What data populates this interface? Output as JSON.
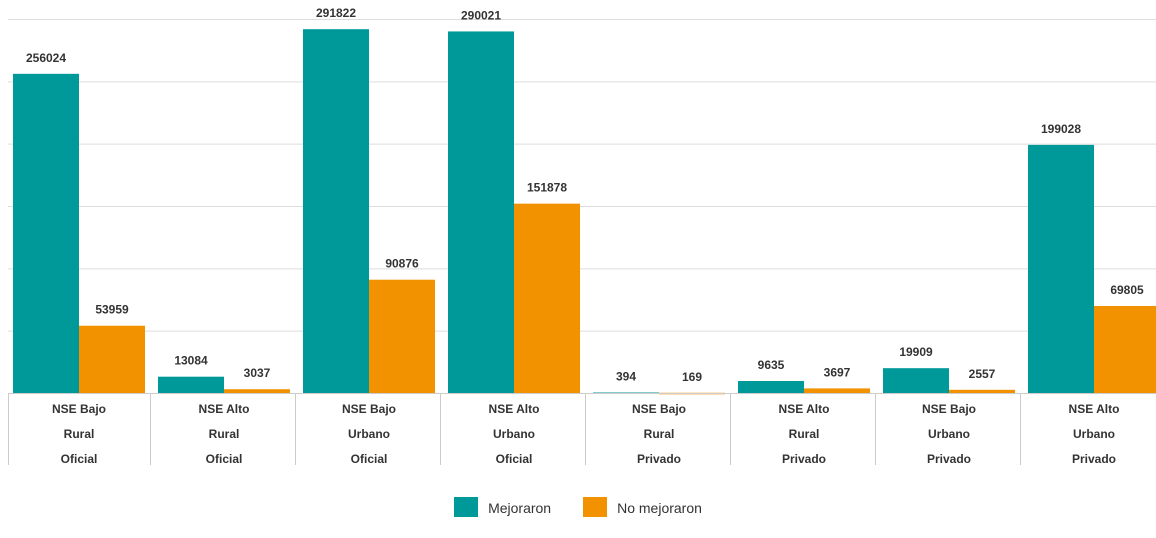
{
  "chart_data": {
    "type": "bar",
    "categories": [
      [
        "NSE Bajo",
        "Rural",
        "Oficial"
      ],
      [
        "NSE Alto",
        "Rural",
        "Oficial"
      ],
      [
        "NSE Bajo",
        "Urbano",
        "Oficial"
      ],
      [
        "NSE Alto",
        "Urbano",
        "Oficial"
      ],
      [
        "NSE Bajo",
        "Rural",
        "Privado"
      ],
      [
        "NSE Alto",
        "Rural",
        "Privado"
      ],
      [
        "NSE Bajo",
        "Urbano",
        "Privado"
      ],
      [
        "NSE Alto",
        "Urbano",
        "Privado"
      ]
    ],
    "series": [
      {
        "name": "Mejoraron",
        "values": [
          256024,
          13084,
          291822,
          290021,
          394,
          9635,
          19909,
          199028
        ],
        "color": "#009999"
      },
      {
        "name": "No mejoraron",
        "values": [
          53959,
          3037,
          90876,
          151878,
          169,
          3697,
          2557,
          69805
        ],
        "color": "#F39200"
      }
    ],
    "ylim": [
      0,
      300000
    ],
    "grid": true,
    "legend": "bottom-center",
    "title": "",
    "xlabel": "",
    "ylabel": ""
  }
}
